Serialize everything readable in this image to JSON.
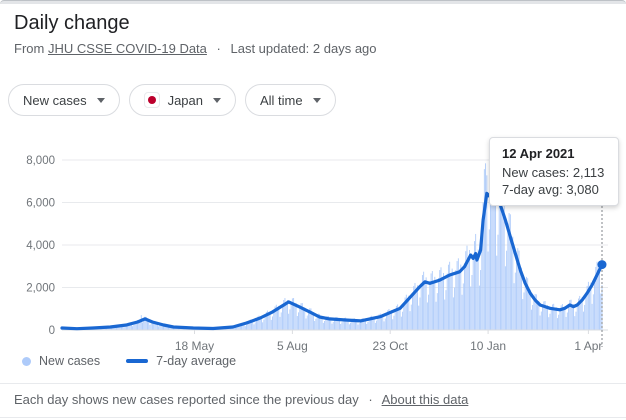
{
  "header": {
    "title": "Daily change",
    "source_prefix": "From",
    "source_link": "JHU CSSE COVID-19 Data",
    "separator": "·",
    "last_updated": "Last updated: 2 days ago"
  },
  "chips": {
    "metric": {
      "label": "New cases"
    },
    "country": {
      "label": "Japan",
      "flag_icon": "japan-flag",
      "flag_color": "#bc002d"
    },
    "range": {
      "label": "All time"
    }
  },
  "tooltip": {
    "date": "12 Apr 2021",
    "rows": [
      {
        "label": "New cases:",
        "value": "2,113"
      },
      {
        "label": "7-day avg:",
        "value": "3,080"
      }
    ]
  },
  "footer": {
    "text": "Each day shows new cases reported since the previous day",
    "separator": "·",
    "link": "About this data"
  },
  "chart_data": {
    "type": "bar",
    "title": "Daily change",
    "xlabel": "",
    "ylabel": "",
    "days_total": 436,
    "x_axis": {
      "ticks": [
        {
          "day": 107,
          "label": "18 May"
        },
        {
          "day": 186,
          "label": "5 Aug"
        },
        {
          "day": 265,
          "label": "23 Oct"
        },
        {
          "day": 344,
          "label": "10 Jan"
        },
        {
          "day": 425,
          "label": "1 Apr"
        }
      ]
    },
    "y_axis": {
      "ticks": [
        0,
        2000,
        4000,
        6000,
        8000
      ],
      "tick_labels": [
        "0",
        "2,000",
        "4,000",
        "6,000",
        "8,000"
      ],
      "max_value": 8000,
      "ylim": [
        0,
        8400
      ]
    },
    "colors": {
      "grid": "#e8eaed",
      "axis": "#dadce0",
      "cursor": "#80868b"
    },
    "series": [
      {
        "name": "New cases",
        "type": "bar",
        "color": "#aecbfa",
        "weekly_factors": [
          1.1,
          0.58,
          0.75,
          1.05,
          1.2,
          1.24,
          1.02
        ],
        "spikes": [
          [
            64,
            700
          ],
          [
            334,
            4520
          ],
          [
            340,
            6004
          ],
          [
            341,
            7570
          ],
          [
            342,
            7844
          ],
          [
            343,
            7278
          ],
          [
            436,
            2113
          ]
        ]
      },
      {
        "name": "7-day average",
        "type": "line",
        "color": "#1967d2",
        "points": [
          [
            0,
            95
          ],
          [
            12,
            60
          ],
          [
            25,
            95
          ],
          [
            39,
            140
          ],
          [
            52,
            235
          ],
          [
            61,
            375
          ],
          [
            67,
            520
          ],
          [
            73,
            375
          ],
          [
            82,
            235
          ],
          [
            90,
            140
          ],
          [
            106,
            95
          ],
          [
            122,
            70
          ],
          [
            138,
            140
          ],
          [
            149,
            330
          ],
          [
            160,
            565
          ],
          [
            170,
            850
          ],
          [
            179,
            1175
          ],
          [
            183,
            1320
          ],
          [
            192,
            1080
          ],
          [
            200,
            850
          ],
          [
            208,
            610
          ],
          [
            216,
            520
          ],
          [
            229,
            470
          ],
          [
            241,
            430
          ],
          [
            257,
            625
          ],
          [
            273,
            1020
          ],
          [
            289,
            2040
          ],
          [
            293,
            2270
          ],
          [
            297,
            2200
          ],
          [
            305,
            2350
          ],
          [
            313,
            2590
          ],
          [
            321,
            2740
          ],
          [
            325,
            2980
          ],
          [
            330,
            3530
          ],
          [
            332,
            3370
          ],
          [
            334,
            3600
          ],
          [
            335,
            3290
          ],
          [
            338,
            3760
          ],
          [
            340,
            5170
          ],
          [
            343,
            6430
          ],
          [
            347,
            6190
          ],
          [
            351,
            6030
          ],
          [
            354,
            5880
          ],
          [
            358,
            5170
          ],
          [
            362,
            4390
          ],
          [
            366,
            3600
          ],
          [
            370,
            2820
          ],
          [
            374,
            2200
          ],
          [
            378,
            1730
          ],
          [
            382,
            1410
          ],
          [
            386,
            1175
          ],
          [
            390,
            1100
          ],
          [
            394,
            1020
          ],
          [
            402,
            950
          ],
          [
            406,
            1020
          ],
          [
            410,
            1175
          ],
          [
            413,
            1100
          ],
          [
            416,
            1175
          ],
          [
            420,
            1410
          ],
          [
            424,
            1730
          ],
          [
            428,
            2120
          ],
          [
            432,
            2590
          ],
          [
            436,
            3080
          ]
        ]
      }
    ],
    "cursor": {
      "day": 436,
      "value": 3080,
      "date": "12 Apr 2021"
    }
  }
}
